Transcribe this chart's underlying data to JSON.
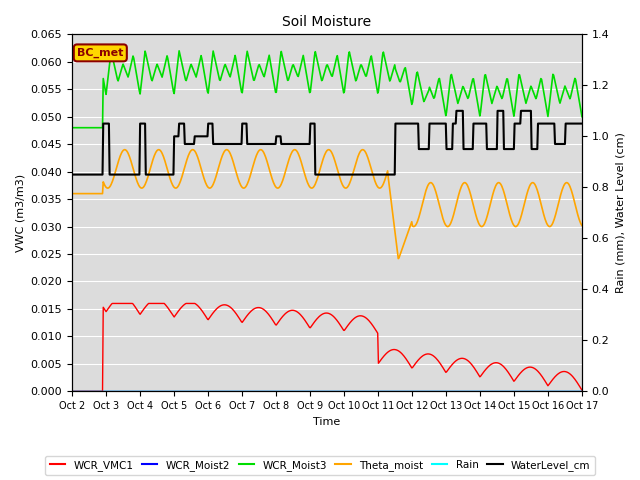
{
  "title": "Soil Moisture",
  "xlabel": "Time",
  "ylabel_left": "VWC (m3/m3)",
  "ylabel_right": "Rain (mm), Water Level (cm)",
  "ylim_left": [
    0.0,
    0.065
  ],
  "ylim_right": [
    0.0,
    1.4
  ],
  "yticks_left": [
    0.0,
    0.005,
    0.01,
    0.015,
    0.02,
    0.025,
    0.03,
    0.035,
    0.04,
    0.045,
    0.05,
    0.055,
    0.06,
    0.065
  ],
  "yticks_right": [
    0.0,
    0.2,
    0.4,
    0.6,
    0.8,
    1.0,
    1.2,
    1.4
  ],
  "annotation_text": "BC_met",
  "annotation_color": "#8B0000",
  "annotation_bg": "#FFD700",
  "background_color": "#DCDCDC",
  "legend_entries": [
    "WCR_VMC1",
    "WCR_Moist2",
    "WCR_Moist3",
    "Theta_moist",
    "Rain",
    "WaterLevel_cm"
  ],
  "legend_colors": [
    "#FF0000",
    "#0000FF",
    "#00DD00",
    "#FFA500",
    "#00FFFF",
    "#000000"
  ],
  "x_labels": [
    "Oct 2",
    "Oct 3",
    "Oct 4",
    "Oct 5",
    "Oct 6",
    "Oct 7",
    "Oct 8",
    "Oct 9",
    "Oct 10",
    "Oct 11",
    "Oct 12",
    "Oct 13",
    "Oct 14",
    "Oct 15",
    "Oct 16",
    "Oct 17"
  ]
}
